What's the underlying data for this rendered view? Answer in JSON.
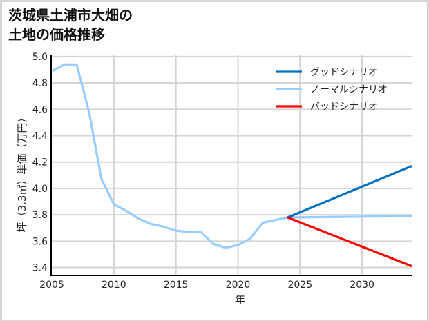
{
  "header": {
    "title_line1": "茨城県土浦市大畑の",
    "title_line2": "土地の価格推移"
  },
  "chart_data": {
    "type": "line",
    "title": "茨城県土浦市大畑の土地の価格推移",
    "xlabel": "年",
    "ylabel": "坪（3.3㎡）単価（万円）",
    "xlim": [
      2005,
      2034
    ],
    "ylim": [
      3.34,
      5.01
    ],
    "xticks": [
      2005,
      2010,
      2015,
      2020,
      2025,
      2030
    ],
    "yticks": [
      3.4,
      3.6,
      3.8,
      4.0,
      4.2,
      4.4,
      4.6,
      4.8,
      5.0
    ],
    "grid": true,
    "legend_position": "upper right",
    "series": [
      {
        "name": "グッドシナリオ",
        "color": "#0070c0",
        "x": [
          2024,
          2034
        ],
        "values": [
          3.78,
          4.17
        ]
      },
      {
        "name": "ノーマルシナリオ",
        "color": "#99ccff",
        "x": [
          2005,
          2006,
          2007,
          2008,
          2009,
          2010,
          2011,
          2012,
          2013,
          2014,
          2015,
          2016,
          2017,
          2018,
          2019,
          2020,
          2021,
          2022,
          2023,
          2024,
          2034
        ],
        "values": [
          4.89,
          4.94,
          4.94,
          4.58,
          4.07,
          3.88,
          3.83,
          3.77,
          3.73,
          3.71,
          3.68,
          3.67,
          3.67,
          3.58,
          3.55,
          3.57,
          3.62,
          3.74,
          3.76,
          3.78,
          3.79
        ]
      },
      {
        "name": "バッドシナリオ",
        "color": "#ff0000",
        "x": [
          2024,
          2034
        ],
        "values": [
          3.78,
          3.41
        ]
      }
    ]
  }
}
